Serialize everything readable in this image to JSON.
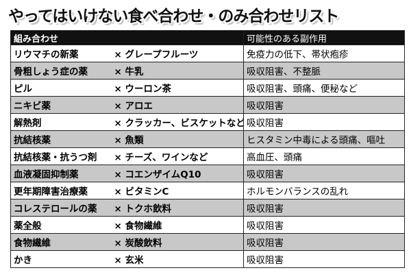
{
  "title": "やってはいけない食べ合わせ・のみ合わせリスト",
  "table": {
    "header": [
      "組み合わせ",
      "可能性のある副作用"
    ],
    "rows": [
      [
        "リウマチの新薬",
        "× グレープフルーツ",
        "免疫力の低下、帯状疱疹"
      ],
      [
        "骨粗しょう症の薬",
        "× 牛乳",
        "吸収阻害、不整脈"
      ],
      [
        "ピル",
        "× ウーロン茶",
        "吸収阻害、頭痛、便秘など"
      ],
      [
        "ニキビ薬",
        "× アロエ",
        "吸収阻害"
      ],
      [
        "解熱剤",
        "× クラッカー、ビスケットなど",
        "吸収阻害"
      ],
      [
        "抗結核薬",
        "× 魚類",
        "ヒスタミン中毒による頭痛、嘔吐"
      ],
      [
        "抗結核薬・抗うつ剤",
        "× チーズ、ワインなど",
        "高血圧、頭痛"
      ],
      [
        "血液凝固抑制薬",
        "× コエンザイムQ10",
        "吸収阻害"
      ],
      [
        "更年期障害治療薬",
        "× ビタミンC",
        "ホルモンバランスの乱れ"
      ],
      [
        "コレステロールの薬",
        "× トクホ飲料",
        "吸収阻害"
      ],
      [
        "薬全般",
        "× 食物繊維",
        "吸収阻害"
      ],
      [
        "食物繊維",
        "× 炭酸飲料",
        "吸収阻害"
      ],
      [
        "かき",
        "× 玄米",
        "吸収阻害"
      ]
    ]
  }
}
